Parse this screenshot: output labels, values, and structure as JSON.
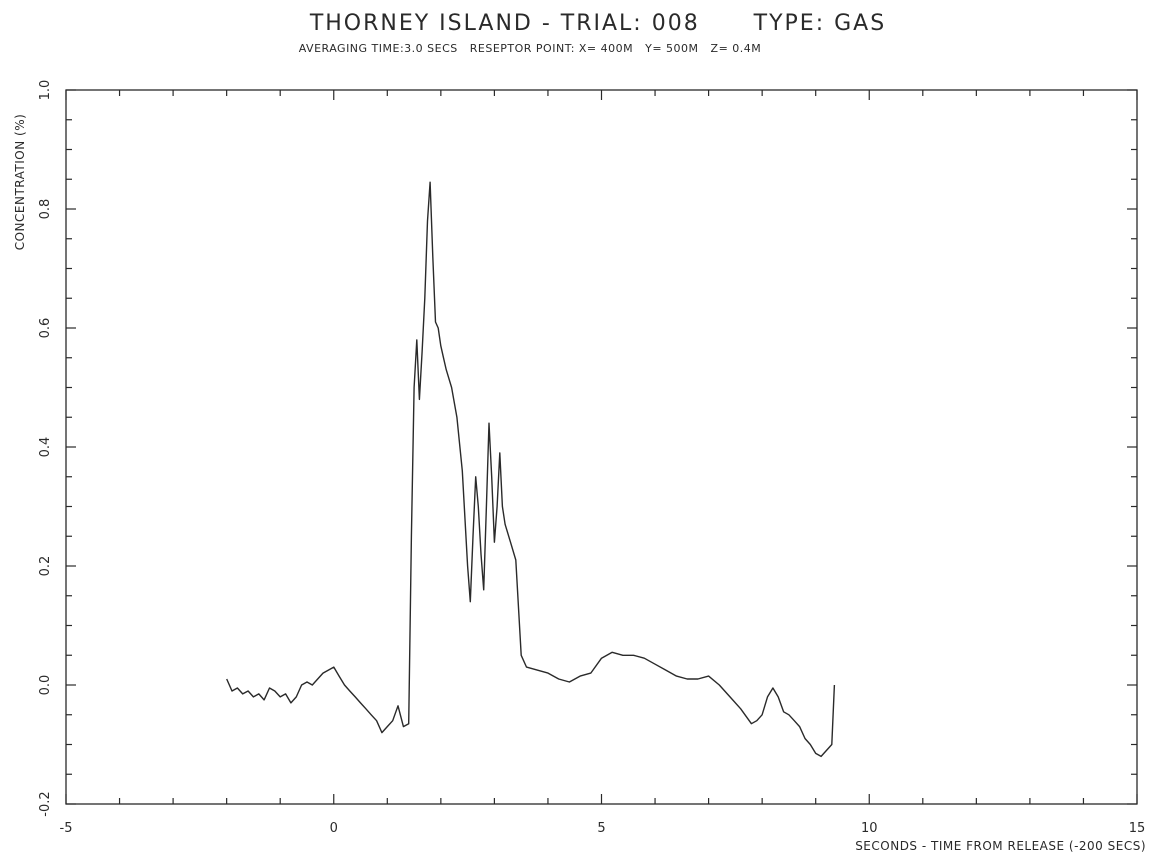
{
  "chart_data": {
    "type": "line",
    "title": "THORNEY ISLAND - TRIAL: 008      TYPE: GAS",
    "subtitle": "AVERAGING TIME:3.0 SECS   RESEPTOR POINT: X= 400M   Y= 500M   Z= 0.4M",
    "xlabel": "SECONDS - TIME FROM RELEASE (-200 SECS)",
    "ylabel": "CONCENTRATION (%)",
    "xlim": [
      -5,
      15
    ],
    "ylim": [
      -0.2,
      1.0
    ],
    "x_ticks": [
      "-5",
      "0",
      "5",
      "10",
      "15"
    ],
    "y_ticks": [
      "-0.2",
      "0.0",
      "0.2",
      "0.4",
      "0.6",
      "0.8",
      "1.0"
    ],
    "grid": false,
    "series": [
      {
        "color": "#2a2a2a",
        "x": [
          -2.0,
          -1.9,
          -1.8,
          -1.7,
          -1.6,
          -1.5,
          -1.4,
          -1.3,
          -1.2,
          -1.1,
          -1.0,
          -0.9,
          -0.8,
          -0.7,
          -0.6,
          -0.5,
          -0.4,
          -0.3,
          -0.2,
          -0.1,
          0.0,
          0.1,
          0.2,
          0.3,
          0.4,
          0.5,
          0.6,
          0.7,
          0.8,
          0.9,
          1.0,
          1.1,
          1.2,
          1.3,
          1.4,
          1.45,
          1.5,
          1.55,
          1.6,
          1.65,
          1.7,
          1.75,
          1.8,
          1.85,
          1.9,
          1.95,
          2.0,
          2.05,
          2.1,
          2.2,
          2.3,
          2.4,
          2.5,
          2.55,
          2.6,
          2.65,
          2.7,
          2.75,
          2.8,
          2.85,
          2.9,
          2.95,
          3.0,
          3.05,
          3.1,
          3.15,
          3.2,
          3.3,
          3.4,
          3.5,
          3.6,
          3.8,
          4.0,
          4.2,
          4.4,
          4.6,
          4.8,
          5.0,
          5.2,
          5.4,
          5.6,
          5.8,
          6.0,
          6.2,
          6.4,
          6.6,
          6.8,
          7.0,
          7.2,
          7.4,
          7.6,
          7.8,
          7.9,
          8.0,
          8.1,
          8.2,
          8.3,
          8.4,
          8.5,
          8.6,
          8.7,
          8.8,
          8.9,
          9.0,
          9.1,
          9.2,
          9.3,
          9.35
        ],
        "y": [
          0.01,
          -0.01,
          -0.005,
          -0.015,
          -0.01,
          -0.02,
          -0.015,
          -0.025,
          -0.005,
          -0.01,
          -0.02,
          -0.015,
          -0.03,
          -0.02,
          0.0,
          0.005,
          0.0,
          0.01,
          0.02,
          0.025,
          0.03,
          0.015,
          0.0,
          -0.01,
          -0.02,
          -0.03,
          -0.04,
          -0.05,
          -0.06,
          -0.08,
          -0.07,
          -0.06,
          -0.035,
          -0.07,
          -0.065,
          0.25,
          0.5,
          0.58,
          0.48,
          0.56,
          0.65,
          0.78,
          0.845,
          0.72,
          0.61,
          0.6,
          0.57,
          0.55,
          0.53,
          0.5,
          0.45,
          0.36,
          0.2,
          0.14,
          0.25,
          0.35,
          0.3,
          0.22,
          0.16,
          0.3,
          0.44,
          0.35,
          0.24,
          0.3,
          0.39,
          0.3,
          0.27,
          0.24,
          0.21,
          0.05,
          0.03,
          0.025,
          0.02,
          0.01,
          0.005,
          0.015,
          0.02,
          0.045,
          0.055,
          0.05,
          0.05,
          0.045,
          0.035,
          0.025,
          0.015,
          0.01,
          0.01,
          0.015,
          0.0,
          -0.02,
          -0.04,
          -0.065,
          -0.06,
          -0.05,
          -0.02,
          -0.005,
          -0.02,
          -0.045,
          -0.05,
          -0.06,
          -0.07,
          -0.09,
          -0.1,
          -0.115,
          -0.12,
          -0.11,
          -0.1,
          0.0
        ]
      }
    ]
  }
}
